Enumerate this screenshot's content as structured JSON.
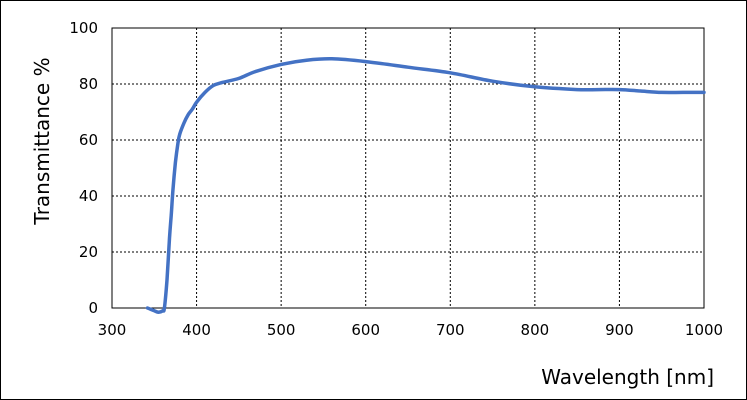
{
  "chart_data": {
    "type": "line",
    "title": "",
    "xlabel": "Wavelength [nm]",
    "ylabel": "Transmittance %",
    "xlim": [
      300,
      1000
    ],
    "ylim": [
      0,
      100
    ],
    "xticks": [
      "300",
      "400",
      "500",
      "600",
      "700",
      "800",
      "900",
      "1000"
    ],
    "yticks": [
      "0",
      "20",
      "40",
      "60",
      "80",
      "100"
    ],
    "grid": true,
    "legend": "none",
    "series": [
      {
        "color": "#4472c4",
        "x": [
          342,
          346,
          350,
          355,
          360,
          362,
          365,
          368,
          370,
          372,
          375,
          378,
          380,
          385,
          390,
          395,
          400,
          410,
          420,
          430,
          450,
          470,
          500,
          530,
          560,
          600,
          650,
          700,
          750,
          800,
          850,
          875,
          900,
          925,
          950,
          975,
          1000
        ],
        "y": [
          0,
          -0.5,
          -1,
          -1.5,
          -1,
          0,
          10,
          25,
          33,
          42,
          52,
          59,
          62,
          66,
          69,
          71,
          73.5,
          77,
          79.5,
          80.5,
          82,
          84.5,
          87,
          88.5,
          89,
          88,
          86,
          84,
          81,
          79,
          78,
          78,
          78,
          77.5,
          77,
          77,
          77
        ]
      }
    ]
  }
}
